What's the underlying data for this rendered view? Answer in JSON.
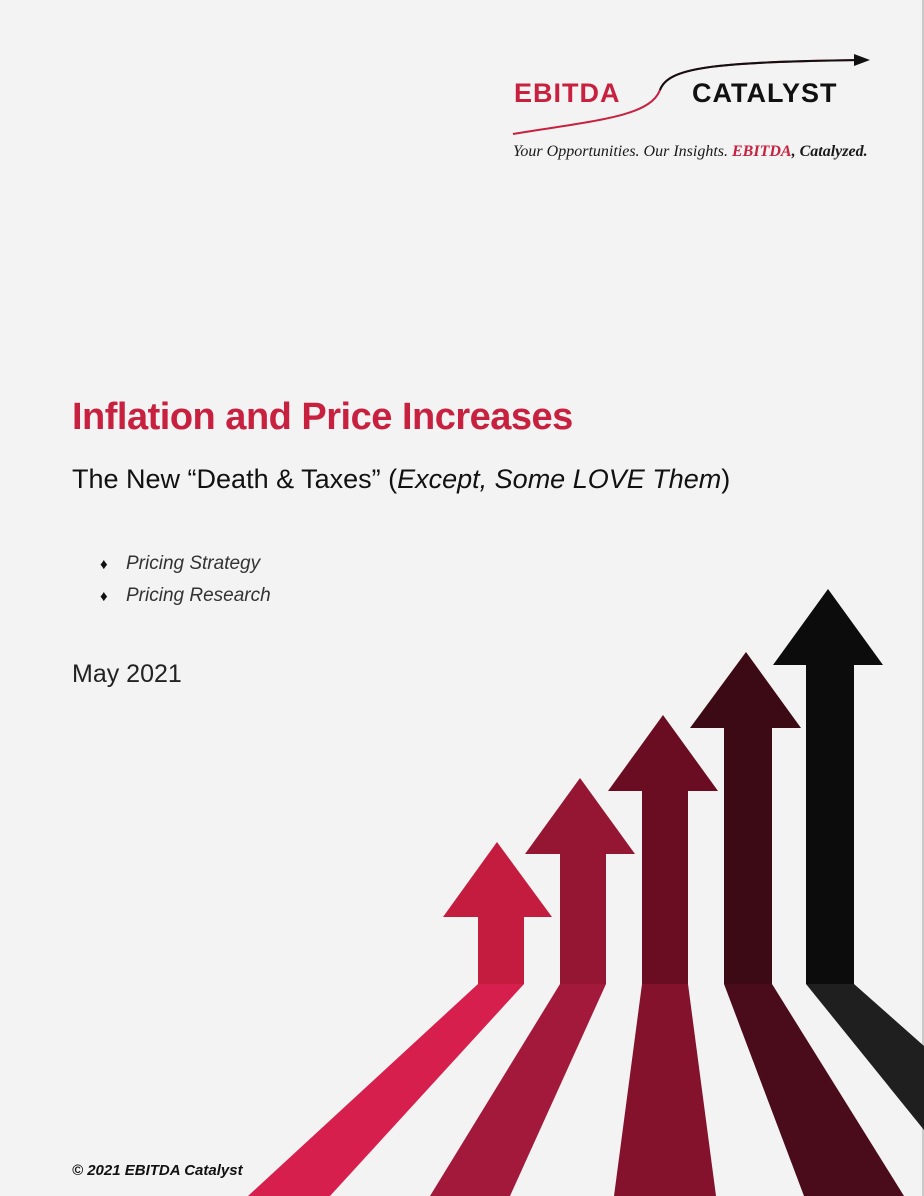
{
  "logo": {
    "word_left": "EBITDA",
    "word_right": "CATALYST",
    "tagline_part1": "Your Opportunities. Our Insights. ",
    "tagline_accent": "EBITDA",
    "tagline_part2": ", Catalyzed.",
    "colors": {
      "red": "#c8203f",
      "black": "#111111"
    }
  },
  "title": "Inflation and Price Increases",
  "subtitle": {
    "part1": "The New “Death & Taxes” (",
    "italic": "Except, Some LOVE Them",
    "part2": ")"
  },
  "bullets": [
    {
      "icon": "diamond-icon",
      "symbol": "♦",
      "label": "Pricing Strategy"
    },
    {
      "icon": "diamond-icon",
      "symbol": "♦",
      "label": "Pricing Research"
    }
  ],
  "date": "May 2021",
  "footer": {
    "copyright": "© 2021 EBITDA Catalyst"
  },
  "arrow_colors": [
    "#c41c3e",
    "#941632",
    "#6b0d22",
    "#3b0a14",
    "#0c0c0c"
  ],
  "arrow_floor_colors": [
    "#d61f4c",
    "#a3193b",
    "#84122d",
    "#4a0b1b",
    "#1f1f1f"
  ]
}
